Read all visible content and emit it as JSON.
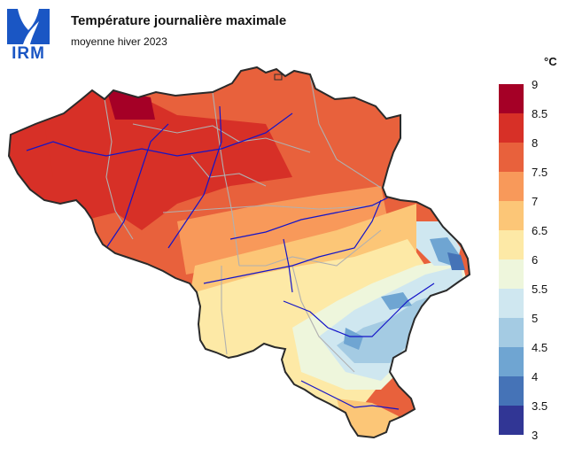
{
  "logo": {
    "text": "IRM"
  },
  "title": "Température journalière maximale",
  "subtitle": "moyenne hiver 2023",
  "legend": {
    "unit": "°C",
    "ticks": [
      "9",
      "8.5",
      "8",
      "7.5",
      "7",
      "6.5",
      "6",
      "5.5",
      "5",
      "4.5",
      "4",
      "3.5",
      "3"
    ],
    "colors": [
      "#a50026",
      "#d73027",
      "#e8613c",
      "#f8995a",
      "#fcc677",
      "#fde9a6",
      "#eef6dc",
      "#cfe7f0",
      "#a4cbe3",
      "#6fa5d2",
      "#4573b7",
      "#313695"
    ]
  },
  "colors": {
    "border": "#2a2a2a",
    "rivers": "#1414c8",
    "provinces": "#b0b0b0",
    "logo": "#1a56c4"
  }
}
